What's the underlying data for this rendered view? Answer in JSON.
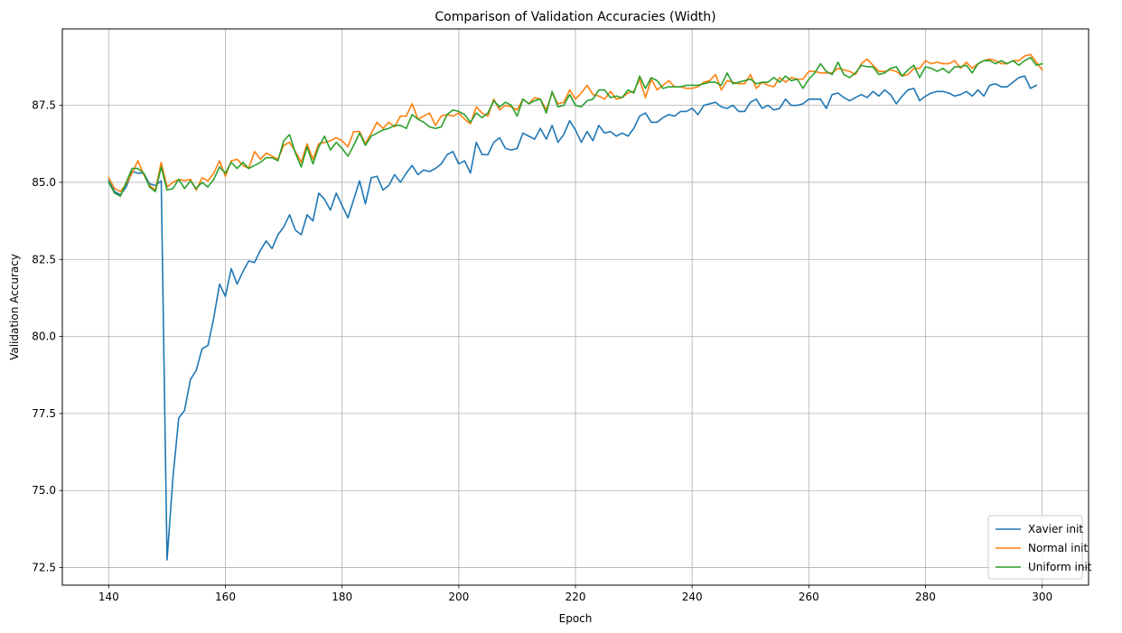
{
  "chart_data": {
    "type": "line",
    "title": "Comparison of Validation Accuracies (Width)",
    "xlabel": "Epoch",
    "ylabel": "Validation Accuracy",
    "xlim": [
      132.05,
      307.95
    ],
    "ylim": [
      71.93,
      89.98
    ],
    "xticks": [
      140,
      160,
      180,
      200,
      220,
      240,
      260,
      280,
      300
    ],
    "yticks": [
      72.5,
      75.0,
      77.5,
      80.0,
      82.5,
      85.0,
      87.5
    ],
    "ytick_labels": [
      "72.5",
      "75.0",
      "77.5",
      "80.0",
      "82.5",
      "85.0",
      "87.5"
    ],
    "grid": true,
    "legend_position": "bottom-right",
    "x_start": 140,
    "series": [
      {
        "name": "Xavier init",
        "color": "#1f77b4",
        "values": [
          85.05,
          84.7,
          84.6,
          84.85,
          85.35,
          85.3,
          85.3,
          84.95,
          84.9,
          85.05,
          72.75,
          75.4,
          77.35,
          77.6,
          78.6,
          78.9,
          79.6,
          79.7,
          80.6,
          81.7,
          81.3,
          82.2,
          81.7,
          82.1,
          82.45,
          82.4,
          82.8,
          83.1,
          82.85,
          83.3,
          83.55,
          83.95,
          83.45,
          83.3,
          83.95,
          83.75,
          84.65,
          84.45,
          84.1,
          84.65,
          84.25,
          83.85,
          84.45,
          85.05,
          84.3,
          85.15,
          85.2,
          84.75,
          84.9,
          85.25,
          85.0,
          85.3,
          85.55,
          85.25,
          85.4,
          85.35,
          85.45,
          85.6,
          85.9,
          86.0,
          85.6,
          85.7,
          85.3,
          86.3,
          85.9,
          85.9,
          86.3,
          86.45,
          86.1,
          86.05,
          86.1,
          86.6,
          86.5,
          86.4,
          86.75,
          86.4,
          86.85,
          86.3,
          86.55,
          87.0,
          86.7,
          86.3,
          86.65,
          86.35,
          86.85,
          86.6,
          86.65,
          86.5,
          86.6,
          86.5,
          86.75,
          87.15,
          87.25,
          86.95,
          86.95,
          87.1,
          87.2,
          87.15,
          87.3,
          87.3,
          87.4,
          87.2,
          87.5,
          87.55,
          87.6,
          87.45,
          87.4,
          87.5,
          87.3,
          87.3,
          87.6,
          87.7,
          87.4,
          87.5,
          87.35,
          87.4,
          87.7,
          87.5,
          87.5,
          87.55,
          87.7,
          87.7,
          87.7,
          87.4,
          87.85,
          87.9,
          87.75,
          87.65,
          87.75,
          87.85,
          87.75,
          87.95,
          87.8,
          88.0,
          87.85,
          87.55,
          87.8,
          88.0,
          88.05,
          87.65,
          87.8,
          87.9,
          87.95,
          87.95,
          87.9,
          87.8,
          87.85,
          87.95,
          87.8,
          88.0,
          87.8,
          88.15,
          88.2,
          88.1,
          88.1,
          88.25,
          88.4,
          88.45,
          88.05,
          88.15
        ]
      },
      {
        "name": "Normal init",
        "color": "#ff7f0e",
        "values": [
          85.15,
          84.8,
          84.7,
          84.95,
          85.3,
          85.7,
          85.25,
          84.9,
          84.75,
          85.65,
          84.85,
          85.0,
          85.1,
          85.05,
          85.1,
          84.75,
          85.15,
          85.05,
          85.3,
          85.7,
          85.2,
          85.7,
          85.75,
          85.55,
          85.45,
          86.0,
          85.75,
          85.95,
          85.85,
          85.75,
          86.2,
          86.3,
          86.0,
          85.65,
          86.25,
          85.75,
          86.25,
          86.3,
          86.35,
          86.45,
          86.35,
          86.15,
          86.65,
          86.65,
          86.25,
          86.6,
          86.95,
          86.75,
          86.95,
          86.8,
          87.15,
          87.15,
          87.55,
          87.05,
          87.15,
          87.25,
          86.85,
          87.15,
          87.2,
          87.15,
          87.25,
          87.05,
          86.9,
          87.45,
          87.25,
          87.15,
          87.7,
          87.35,
          87.5,
          87.45,
          87.35,
          87.7,
          87.55,
          87.75,
          87.7,
          87.35,
          87.9,
          87.55,
          87.6,
          88.0,
          87.7,
          87.9,
          88.15,
          87.85,
          87.8,
          87.7,
          87.95,
          87.7,
          87.75,
          87.9,
          87.95,
          88.35,
          87.75,
          88.35,
          88.0,
          88.15,
          88.3,
          88.1,
          88.1,
          88.05,
          88.05,
          88.1,
          88.25,
          88.3,
          88.5,
          88.0,
          88.3,
          88.25,
          88.2,
          88.2,
          88.5,
          88.05,
          88.25,
          88.15,
          88.1,
          88.4,
          88.25,
          88.4,
          88.35,
          88.35,
          88.6,
          88.6,
          88.55,
          88.55,
          88.55,
          88.7,
          88.65,
          88.6,
          88.5,
          88.85,
          89.0,
          88.8,
          88.6,
          88.6,
          88.65,
          88.6,
          88.45,
          88.5,
          88.7,
          88.7,
          88.95,
          88.85,
          88.9,
          88.85,
          88.85,
          88.95,
          88.7,
          88.9,
          88.7,
          88.85,
          88.95,
          89.0,
          88.95,
          88.85,
          88.85,
          88.95,
          88.95,
          89.1,
          89.15,
          88.9,
          88.65
        ]
      },
      {
        "name": "Uniform init",
        "color": "#2ca02c",
        "values": [
          85.0,
          84.65,
          84.55,
          85.0,
          85.45,
          85.45,
          85.3,
          84.85,
          84.7,
          85.5,
          84.75,
          84.8,
          85.1,
          84.8,
          85.05,
          84.8,
          85.0,
          84.85,
          85.1,
          85.5,
          85.3,
          85.65,
          85.45,
          85.65,
          85.45,
          85.55,
          85.65,
          85.8,
          85.8,
          85.7,
          86.35,
          86.55,
          85.95,
          85.5,
          86.15,
          85.6,
          86.15,
          86.5,
          86.05,
          86.3,
          86.1,
          85.85,
          86.2,
          86.6,
          86.2,
          86.5,
          86.6,
          86.7,
          86.75,
          86.85,
          86.85,
          86.75,
          87.2,
          87.05,
          86.95,
          86.8,
          86.75,
          86.8,
          87.2,
          87.35,
          87.3,
          87.2,
          86.95,
          87.25,
          87.1,
          87.25,
          87.65,
          87.45,
          87.6,
          87.5,
          87.15,
          87.7,
          87.55,
          87.65,
          87.7,
          87.25,
          87.95,
          87.45,
          87.5,
          87.85,
          87.5,
          87.45,
          87.65,
          87.7,
          88.0,
          88.0,
          87.75,
          87.8,
          87.75,
          88.0,
          87.9,
          88.45,
          88.05,
          88.4,
          88.3,
          88.05,
          88.1,
          88.1,
          88.1,
          88.15,
          88.15,
          88.15,
          88.2,
          88.25,
          88.25,
          88.15,
          88.55,
          88.2,
          88.25,
          88.3,
          88.35,
          88.2,
          88.25,
          88.25,
          88.4,
          88.25,
          88.45,
          88.3,
          88.35,
          88.05,
          88.35,
          88.55,
          88.85,
          88.6,
          88.5,
          88.9,
          88.5,
          88.4,
          88.55,
          88.8,
          88.75,
          88.75,
          88.5,
          88.55,
          88.7,
          88.75,
          88.45,
          88.65,
          88.8,
          88.4,
          88.75,
          88.7,
          88.6,
          88.7,
          88.55,
          88.75,
          88.75,
          88.8,
          88.55,
          88.85,
          88.95,
          88.95,
          88.85,
          88.95,
          88.85,
          88.95,
          88.8,
          88.95,
          89.05,
          88.8,
          88.85
        ]
      }
    ]
  }
}
